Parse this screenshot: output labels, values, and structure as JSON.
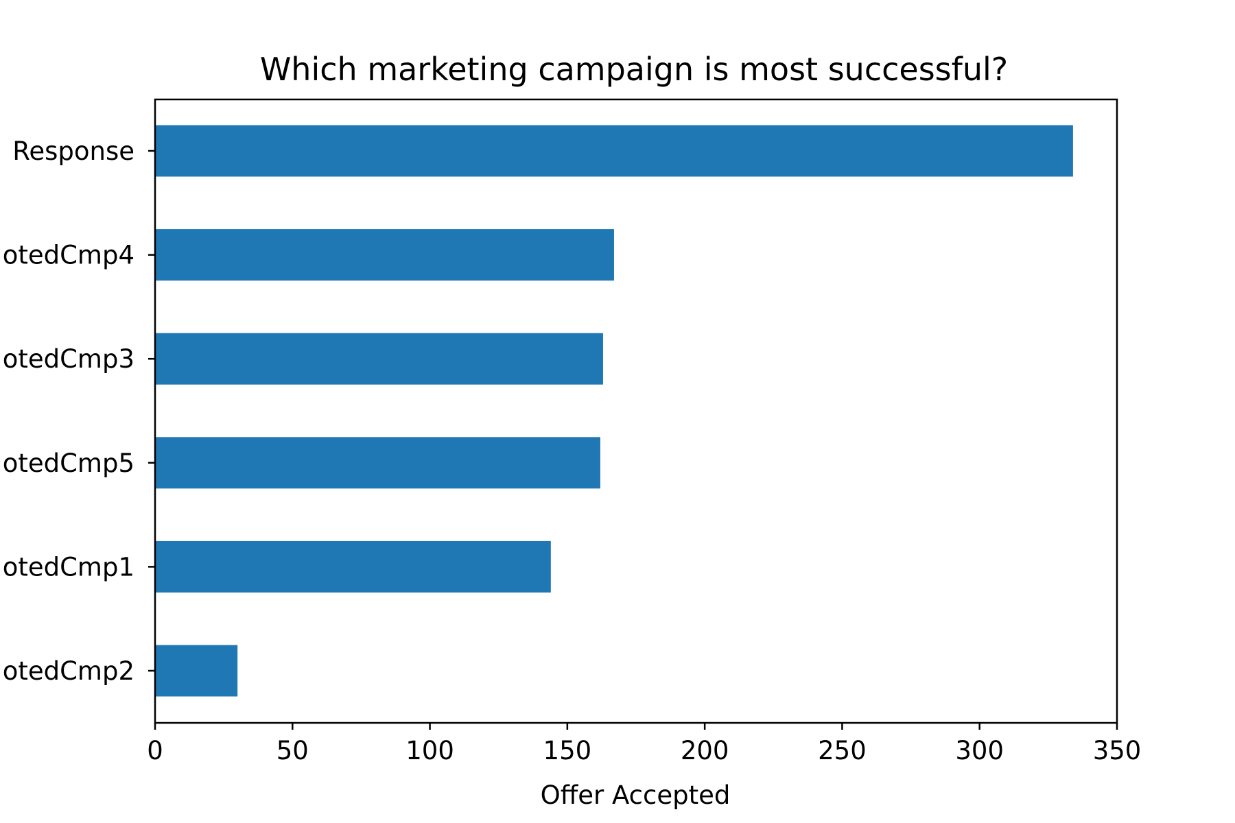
{
  "chart_data": {
    "type": "bar",
    "orientation": "horizontal",
    "title": "Which marketing campaign is most successful?",
    "xlabel": "Offer Accepted",
    "ylabel": "",
    "categories": [
      "Response",
      "otedCmp4",
      "otedCmp3",
      "otedCmp5",
      "otedCmp1",
      "otedCmp2"
    ],
    "values": [
      334,
      167,
      163,
      162,
      144,
      30
    ],
    "xlim": [
      0,
      350
    ],
    "xticks": [
      "0",
      "50",
      "100",
      "150",
      "200",
      "250",
      "300",
      "350"
    ],
    "grid": false,
    "legend": "none",
    "bar_color": "#1f77b4"
  }
}
